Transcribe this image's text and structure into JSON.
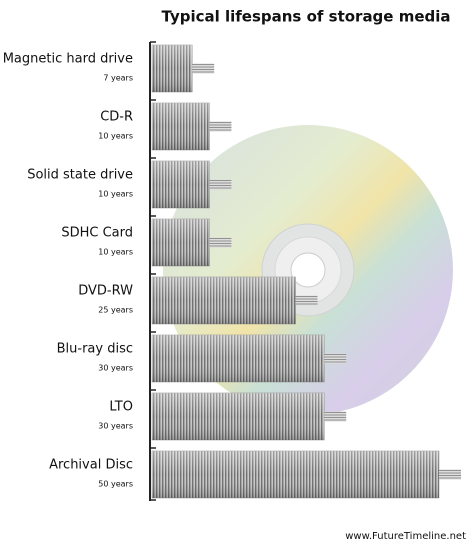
{
  "chart_data": {
    "type": "bar",
    "orientation": "horizontal",
    "title": "Typical lifespans of storage media",
    "categories": [
      "Magnetic hard drive",
      "CD-R",
      "Solid state drive",
      "SDHC Card",
      "DVD-RW",
      "Blu-ray disc",
      "LTO",
      "Archival Disc"
    ],
    "values": [
      7,
      10,
      10,
      10,
      25,
      30,
      30,
      50
    ],
    "value_labels": [
      "7 years",
      "10 years",
      "10 years",
      "10 years",
      "25 years",
      "30 years",
      "30 years",
      "50 years"
    ],
    "color": "#8a8a8a",
    "source": "www.FutureTimeline.net"
  }
}
